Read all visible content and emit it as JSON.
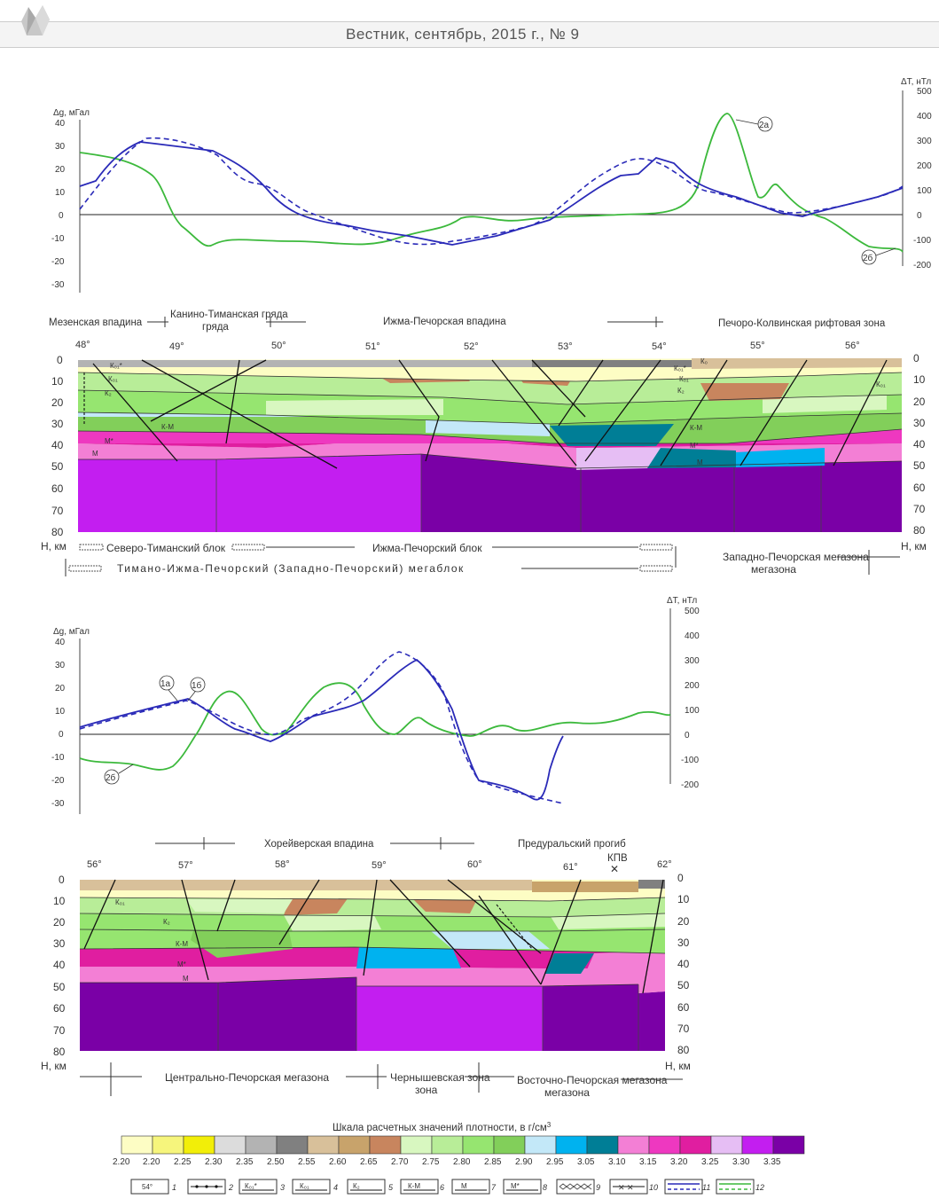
{
  "header": {
    "journal_line": "Вестник, сентябрь, 2015 г., № 9"
  },
  "figure_top": {
    "gravity_axis_label": "Δg, мГал",
    "gravity_ticks": [
      "40",
      "30",
      "20",
      "10",
      "0",
      "-10",
      "-20",
      "-30"
    ],
    "magnetic_axis_label": "ΔT, нТл",
    "magnetic_ticks": [
      "500",
      "400",
      "300",
      "200",
      "100",
      "0",
      "-100",
      "-200"
    ],
    "curve_labels": [
      "2а",
      "2б"
    ],
    "region_labels": [
      "Мезенская впадина",
      "Канино-Тиманская гряда",
      "Ижма-Печорская впадина",
      "Печоро-Колвинская рифтовая зона"
    ],
    "longitudes": [
      "48°",
      "49°",
      "50°",
      "51°",
      "52°",
      "53°",
      "54°",
      "55°",
      "56°"
    ],
    "depth_ticks": [
      "0",
      "10",
      "20",
      "30",
      "40",
      "50",
      "60",
      "70",
      "80"
    ],
    "depth_unit": "Н, км",
    "layer_labels": [
      "К₀₁*",
      "К₀₁",
      "К₂",
      "К-М",
      "М*",
      "М",
      "К₀"
    ],
    "blocks": [
      "Северо-Тиманский блок",
      "Ижма-Печорский блок",
      "Западно-Печорская мегазона"
    ],
    "megablock": "Тимано-Ижма-Печорский (Западно-Печорский) мегаблок"
  },
  "figure_bottom": {
    "gravity_axis_label": "Δg, мГал",
    "gravity_ticks": [
      "40",
      "30",
      "20",
      "10",
      "0",
      "-10",
      "-20",
      "-30"
    ],
    "magnetic_axis_label": "ΔT, нТл",
    "magnetic_ticks": [
      "500",
      "400",
      "300",
      "200",
      "100",
      "0",
      "-100",
      "-200"
    ],
    "curve_labels": [
      "1а",
      "1б",
      "2б"
    ],
    "region_labels": [
      "Хорейверская впадина",
      "Предуральский прогиб",
      "КПВ"
    ],
    "longitudes": [
      "56°",
      "57°",
      "58°",
      "59°",
      "60°",
      "61°",
      "62°"
    ],
    "depth_ticks": [
      "0",
      "10",
      "20",
      "30",
      "40",
      "50",
      "60",
      "70",
      "80"
    ],
    "depth_unit": "Н, км",
    "layer_labels": [
      "К₀₁",
      "К₂",
      "К-М",
      "М*",
      "М"
    ],
    "blocks": [
      "Центрально-Печорская мегазона",
      "Чернышевская зона",
      "Восточно-Печорская мегазона"
    ]
  },
  "legend": {
    "title": "Шкала расчетных значений плотности, в г/см",
    "title_sup": "3",
    "colors": [
      "#fdfdc4",
      "#f6f57c",
      "#f2ee08",
      "#dcdcdc",
      "#b3b3b3",
      "#808080",
      "#d8c09a",
      "#c8a36b",
      "#c8855e",
      "#d8f7c0",
      "#b8ed98",
      "#96e570",
      "#82cf5a",
      "#c3e8f8",
      "#00b2ef",
      "#007e96",
      "#f37fd5",
      "#ee38c0",
      "#e01ea0",
      "#e6bef4",
      "#c31ef0",
      "#7a00a6"
    ],
    "values": [
      "2.20",
      "2.25",
      "2.30",
      "2.35",
      "2.50",
      "2.55",
      "2.60",
      "2.65",
      "2.70",
      "2.75",
      "2.80",
      "2.85",
      "2.90",
      "2.95",
      "3.05",
      "3.10",
      "3.15",
      "3.20",
      "3.25",
      "3.30",
      "3.35"
    ],
    "symbols": [
      {
        "sample": "54°",
        "num": "1"
      },
      {
        "sample": "",
        "num": "2"
      },
      {
        "sample": "К₀₁*",
        "num": "3"
      },
      {
        "sample": "К₀₁",
        "num": "4"
      },
      {
        "sample": "К₂",
        "num": "5"
      },
      {
        "sample": "К-М",
        "num": "6"
      },
      {
        "sample": "М",
        "num": "7"
      },
      {
        "sample": "М*",
        "num": "8"
      },
      {
        "sample": "",
        "num": "9"
      },
      {
        "sample": "",
        "num": "10"
      },
      {
        "sample": "",
        "num": "11"
      },
      {
        "sample": "",
        "num": "12"
      }
    ]
  }
}
